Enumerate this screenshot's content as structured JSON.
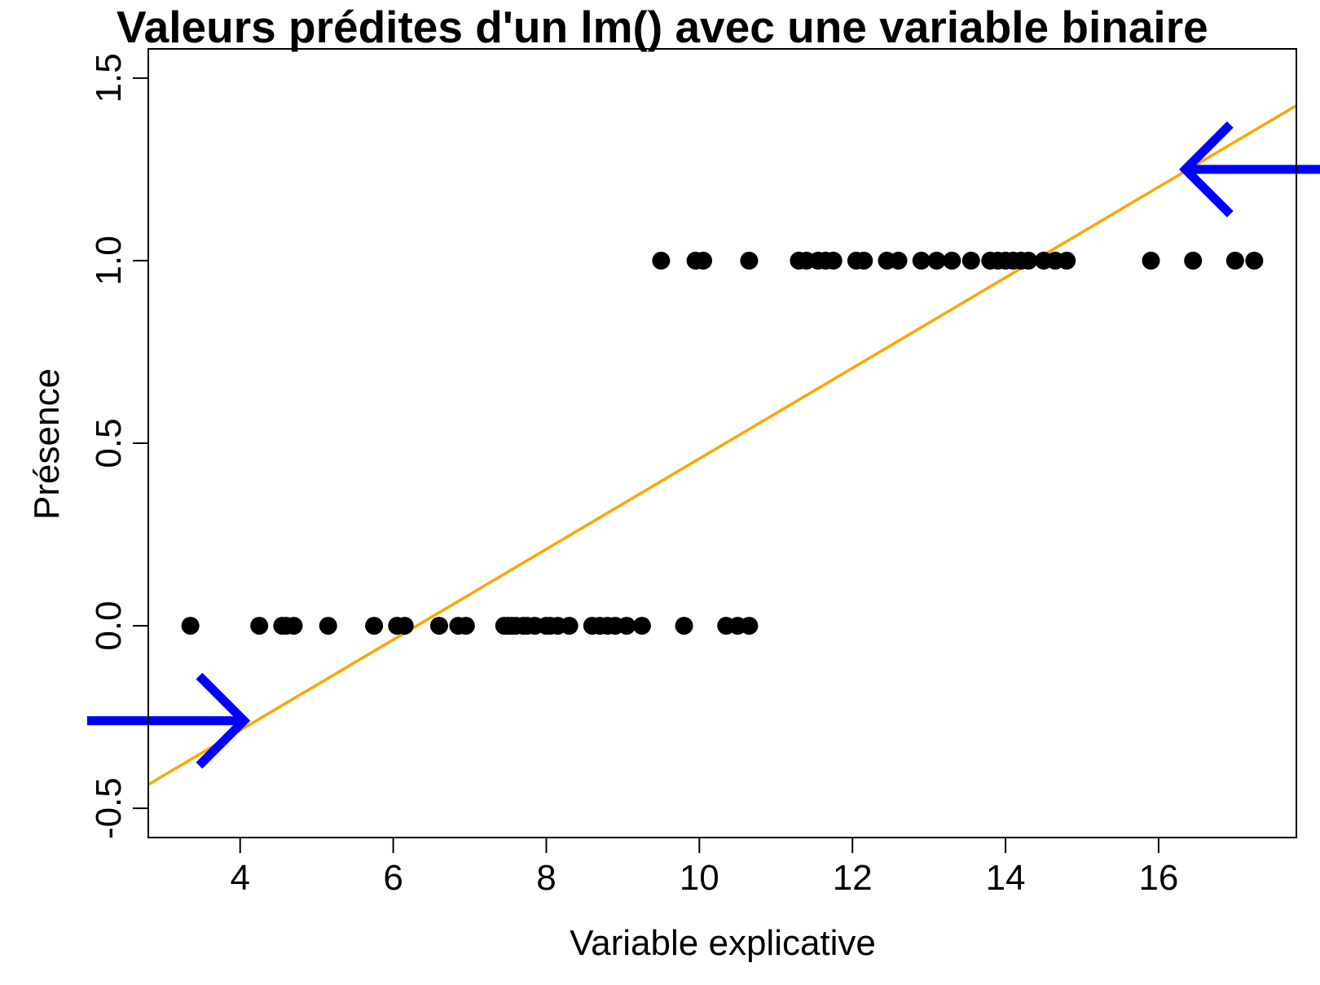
{
  "chart_data": {
    "type": "scatter",
    "title": "Valeurs prédites d'un lm() avec une variable binaire",
    "xlabel": "Variable explicative",
    "ylabel": "Présence",
    "xlim": [
      2.8,
      17.8
    ],
    "ylim": [
      -0.58,
      1.58
    ],
    "x_ticks": [
      4,
      6,
      8,
      10,
      12,
      14,
      16
    ],
    "x_tick_labels": [
      "4",
      "6",
      "8",
      "10",
      "12",
      "14",
      "16"
    ],
    "y_ticks": [
      -0.5,
      0.0,
      0.5,
      1.0,
      1.5
    ],
    "y_tick_labels": [
      "-0.5",
      "0.0",
      "0.5",
      "1.0",
      "1.5"
    ],
    "grid": false,
    "legend": "none",
    "points": {
      "y0_x": [
        3.35,
        4.25,
        4.55,
        4.6,
        4.7,
        5.15,
        5.75,
        6.05,
        6.15,
        6.6,
        6.85,
        6.95,
        7.45,
        7.5,
        7.55,
        7.6,
        7.7,
        7.75,
        7.85,
        8.0,
        8.05,
        8.15,
        8.3,
        8.6,
        8.7,
        8.8,
        8.9,
        9.05,
        9.25,
        9.8,
        10.35,
        10.5,
        10.65
      ],
      "y1_x": [
        9.5,
        9.95,
        10.05,
        10.65,
        11.3,
        11.4,
        11.55,
        11.65,
        11.75,
        12.05,
        12.15,
        12.45,
        12.6,
        12.9,
        13.1,
        13.3,
        13.55,
        13.8,
        13.9,
        14.0,
        14.1,
        14.2,
        14.3,
        14.5,
        14.65,
        14.8,
        15.9,
        16.45,
        17.0,
        17.25
      ],
      "color": "#000000"
    },
    "fit_line": {
      "x": [
        2.8,
        17.8
      ],
      "y": [
        -0.435,
        1.425
      ],
      "color": "#FFA500"
    },
    "annotations": [
      {
        "type": "arrow",
        "direction": "right",
        "x_tail": 2.0,
        "x_head": 4.05,
        "y": -0.26,
        "color": "#0000FF"
      },
      {
        "type": "arrow",
        "direction": "left",
        "x_tail": 18.2,
        "x_head": 16.35,
        "y": 1.25,
        "color": "#0000FF"
      }
    ]
  }
}
